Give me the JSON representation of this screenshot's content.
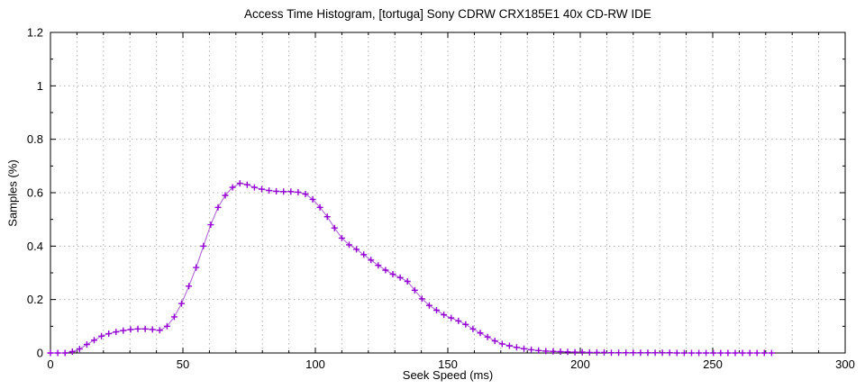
{
  "chart_data": {
    "type": "line",
    "title": "Access Time Histogram, [tortuga] Sony CDRW CRX185E1 40x CD-RW IDE",
    "xlabel": "Seek Speed (ms)",
    "ylabel": "Samples (%)",
    "xlim": [
      0,
      300
    ],
    "ylim": [
      0,
      1.2
    ],
    "x_ticks": {
      "values": [
        0,
        50,
        100,
        150,
        200,
        250,
        300
      ],
      "labels": [
        "0",
        "50",
        "100",
        "150",
        "200",
        "250",
        "300"
      ]
    },
    "y_ticks": {
      "values": [
        0,
        0.2,
        0.4,
        0.6,
        0.8,
        1,
        1.2
      ],
      "labels": [
        "0",
        "0.2",
        "0.4",
        "0.6",
        "0.8",
        "1",
        "1.2"
      ]
    },
    "x_minor_step": 10,
    "y_minor_step": 0.1,
    "grid": {
      "style": "dotted",
      "color": "#b0b0b0",
      "vertical_every": 10,
      "horizontal_every": 0.2
    },
    "legend": "none",
    "colors": {
      "line": "#b168d6",
      "marker": "#9400d3",
      "axis": "#000000",
      "background": "#ffffff"
    },
    "series": [
      {
        "name": "samples",
        "marker": "plus",
        "points": [
          [
            0,
            0
          ],
          [
            2.75,
            0
          ],
          [
            5.5,
            0
          ],
          [
            8.25,
            0.005
          ],
          [
            11,
            0.015
          ],
          [
            13.75,
            0.032
          ],
          [
            16.5,
            0.048
          ],
          [
            19.25,
            0.063
          ],
          [
            22,
            0.072
          ],
          [
            24.75,
            0.079
          ],
          [
            27.5,
            0.084
          ],
          [
            30.25,
            0.088
          ],
          [
            33,
            0.09
          ],
          [
            35.75,
            0.09
          ],
          [
            38.5,
            0.088
          ],
          [
            41.25,
            0.085
          ],
          [
            44,
            0.1
          ],
          [
            46.75,
            0.135
          ],
          [
            49.5,
            0.185
          ],
          [
            52.25,
            0.25
          ],
          [
            55,
            0.32
          ],
          [
            57.75,
            0.4
          ],
          [
            60.5,
            0.48
          ],
          [
            63.25,
            0.545
          ],
          [
            66,
            0.59
          ],
          [
            68.75,
            0.62
          ],
          [
            71.5,
            0.635
          ],
          [
            74.25,
            0.63
          ],
          [
            77,
            0.62
          ],
          [
            79.75,
            0.613
          ],
          [
            82.5,
            0.608
          ],
          [
            85.25,
            0.605
          ],
          [
            88,
            0.604
          ],
          [
            90.75,
            0.604
          ],
          [
            93.5,
            0.602
          ],
          [
            96.25,
            0.595
          ],
          [
            99,
            0.575
          ],
          [
            101.75,
            0.545
          ],
          [
            104.5,
            0.51
          ],
          [
            107.25,
            0.468
          ],
          [
            110,
            0.43
          ],
          [
            112.75,
            0.405
          ],
          [
            115.5,
            0.388
          ],
          [
            118.25,
            0.368
          ],
          [
            121,
            0.348
          ],
          [
            123.75,
            0.328
          ],
          [
            126.5,
            0.31
          ],
          [
            129.25,
            0.295
          ],
          [
            132,
            0.282
          ],
          [
            134.75,
            0.268
          ],
          [
            137.5,
            0.235
          ],
          [
            140.25,
            0.203
          ],
          [
            143,
            0.178
          ],
          [
            145.75,
            0.16
          ],
          [
            148.5,
            0.143
          ],
          [
            151.25,
            0.131
          ],
          [
            154,
            0.12
          ],
          [
            156.75,
            0.107
          ],
          [
            159.5,
            0.09
          ],
          [
            162.25,
            0.075
          ],
          [
            165,
            0.06
          ],
          [
            167.75,
            0.045
          ],
          [
            170.5,
            0.034
          ],
          [
            173.25,
            0.027
          ],
          [
            176,
            0.021
          ],
          [
            178.75,
            0.016
          ],
          [
            181.5,
            0.012
          ],
          [
            184.25,
            0.009
          ],
          [
            187,
            0.007
          ],
          [
            189.75,
            0.006
          ],
          [
            192.5,
            0.005
          ],
          [
            195.25,
            0.004
          ],
          [
            198,
            0.003
          ],
          [
            200.75,
            0.003
          ],
          [
            203.5,
            0.002
          ],
          [
            206.25,
            0.002
          ],
          [
            209,
            0.002
          ],
          [
            211.75,
            0.001
          ],
          [
            214.5,
            0.001
          ],
          [
            217.25,
            0.001
          ],
          [
            220,
            0.001
          ],
          [
            222.75,
            0.001
          ],
          [
            225.5,
            0.001
          ],
          [
            228.25,
            0.001
          ],
          [
            231,
            0.001
          ],
          [
            233.75,
            0.001
          ],
          [
            236.5,
            0
          ],
          [
            239.25,
            0
          ],
          [
            242,
            0
          ],
          [
            244.75,
            0
          ],
          [
            247.5,
            0
          ],
          [
            250.25,
            0
          ],
          [
            253,
            0
          ],
          [
            255.75,
            0
          ],
          [
            258.5,
            0
          ],
          [
            261.25,
            0
          ],
          [
            264,
            0
          ],
          [
            266.75,
            0
          ],
          [
            269.5,
            0
          ],
          [
            272.25,
            0
          ]
        ]
      }
    ]
  }
}
